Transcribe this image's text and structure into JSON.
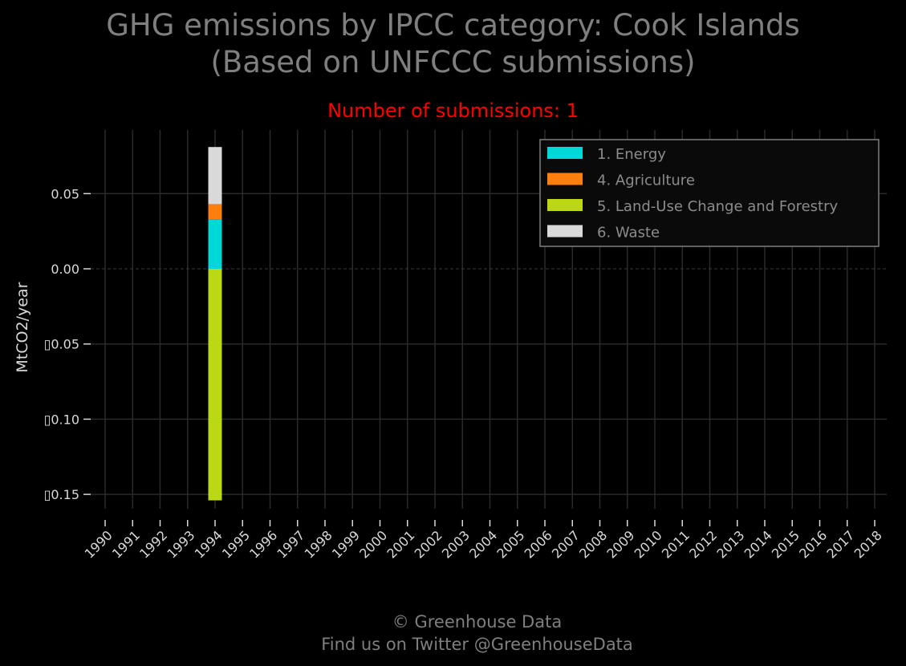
{
  "title_line1": "GHG emissions by IPCC category: Cook Islands",
  "title_line2": "(Based on UNFCCC submissions)",
  "subtitle": "Number of submissions: 1",
  "footer_line1": "© Greenhouse Data",
  "footer_line2": "Find us on Twitter @GreenhouseData",
  "chart_data": {
    "type": "bar",
    "stacked": true,
    "ylabel": "MtCO2/year",
    "xlabel": "",
    "ylim": [
      -0.165,
      0.092
    ],
    "yticks": [
      0.05,
      0.0,
      -0.05,
      -0.1,
      -0.15
    ],
    "ytick_labels": [
      "0.05",
      "0.00",
      "▯0.05",
      "▯0.10",
      "▯0.15"
    ],
    "categories": [
      "1990",
      "1991",
      "1992",
      "1993",
      "1994",
      "1995",
      "1996",
      "1997",
      "1998",
      "1999",
      "2000",
      "2001",
      "2002",
      "2003",
      "2004",
      "2005",
      "2006",
      "2007",
      "2008",
      "2009",
      "2010",
      "2011",
      "2012",
      "2013",
      "2014",
      "2015",
      "2016",
      "2017",
      "2018"
    ],
    "series": [
      {
        "name": "1. Energy",
        "color": "#00d8d8",
        "values": [
          null,
          null,
          null,
          null,
          0.033,
          null,
          null,
          null,
          null,
          null,
          null,
          null,
          null,
          null,
          null,
          null,
          null,
          null,
          null,
          null,
          null,
          null,
          null,
          null,
          null,
          null,
          null,
          null,
          null
        ]
      },
      {
        "name": "4. Agriculture",
        "color": "#ff7f0e",
        "values": [
          null,
          null,
          null,
          null,
          0.01,
          null,
          null,
          null,
          null,
          null,
          null,
          null,
          null,
          null,
          null,
          null,
          null,
          null,
          null,
          null,
          null,
          null,
          null,
          null,
          null,
          null,
          null,
          null,
          null
        ]
      },
      {
        "name": "5. Land-Use Change and Forestry",
        "color": "#bcd714",
        "values": [
          null,
          null,
          null,
          null,
          -0.154,
          null,
          null,
          null,
          null,
          null,
          null,
          null,
          null,
          null,
          null,
          null,
          null,
          null,
          null,
          null,
          null,
          null,
          null,
          null,
          null,
          null,
          null,
          null,
          null
        ]
      },
      {
        "name": "6. Waste",
        "color": "#d9d9d9",
        "values": [
          null,
          null,
          null,
          null,
          0.038,
          null,
          null,
          null,
          null,
          null,
          null,
          null,
          null,
          null,
          null,
          null,
          null,
          null,
          null,
          null,
          null,
          null,
          null,
          null,
          null,
          null,
          null,
          null,
          null
        ]
      }
    ],
    "grid": true,
    "legend_position": "top-right"
  }
}
